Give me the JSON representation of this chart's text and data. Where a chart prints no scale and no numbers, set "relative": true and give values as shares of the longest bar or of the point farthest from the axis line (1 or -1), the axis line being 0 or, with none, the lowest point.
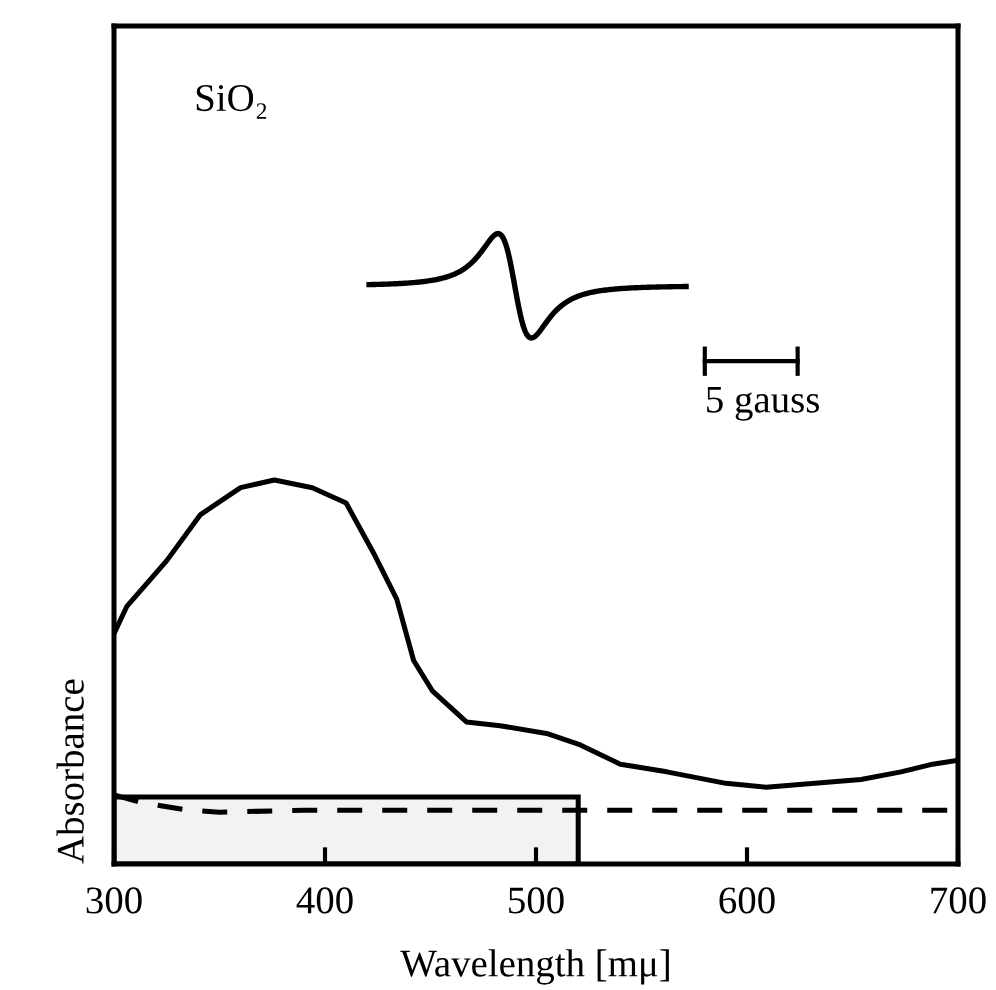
{
  "chart_data": {
    "type": "line",
    "relative": true,
    "xlabel": "Wavelength [mμ]",
    "ylabel": "Absorbance",
    "xlim": [
      300,
      700
    ],
    "xticks": [
      300,
      400,
      500,
      600,
      700
    ],
    "grid": false,
    "series": [
      {
        "color": "#000000",
        "line_style": "solid",
        "x": [
          300,
          306,
          325,
          341,
          360,
          376,
          394,
          410,
          423,
          434,
          442,
          451,
          467,
          483,
          505,
          521,
          540,
          562,
          590,
          609,
          654,
          673,
          688,
          700
        ],
        "values": [
          0.6,
          0.67,
          0.79,
          0.91,
          0.98,
          1.0,
          0.98,
          0.94,
          0.81,
          0.69,
          0.53,
          0.45,
          0.37,
          0.36,
          0.34,
          0.31,
          0.26,
          0.24,
          0.21,
          0.2,
          0.22,
          0.24,
          0.26,
          0.27
        ]
      },
      {
        "color": "#000000",
        "line_style": "dashed",
        "x": [
          300,
          313,
          335,
          350,
          390,
          700
        ],
        "values": [
          0.18,
          0.16,
          0.14,
          0.135,
          0.14,
          0.14
        ]
      }
    ],
    "bands": [
      {
        "axis": "x",
        "from": 300,
        "to": 520
      }
    ],
    "annotations": [
      "SiO₂",
      "5 gauss"
    ]
  }
}
